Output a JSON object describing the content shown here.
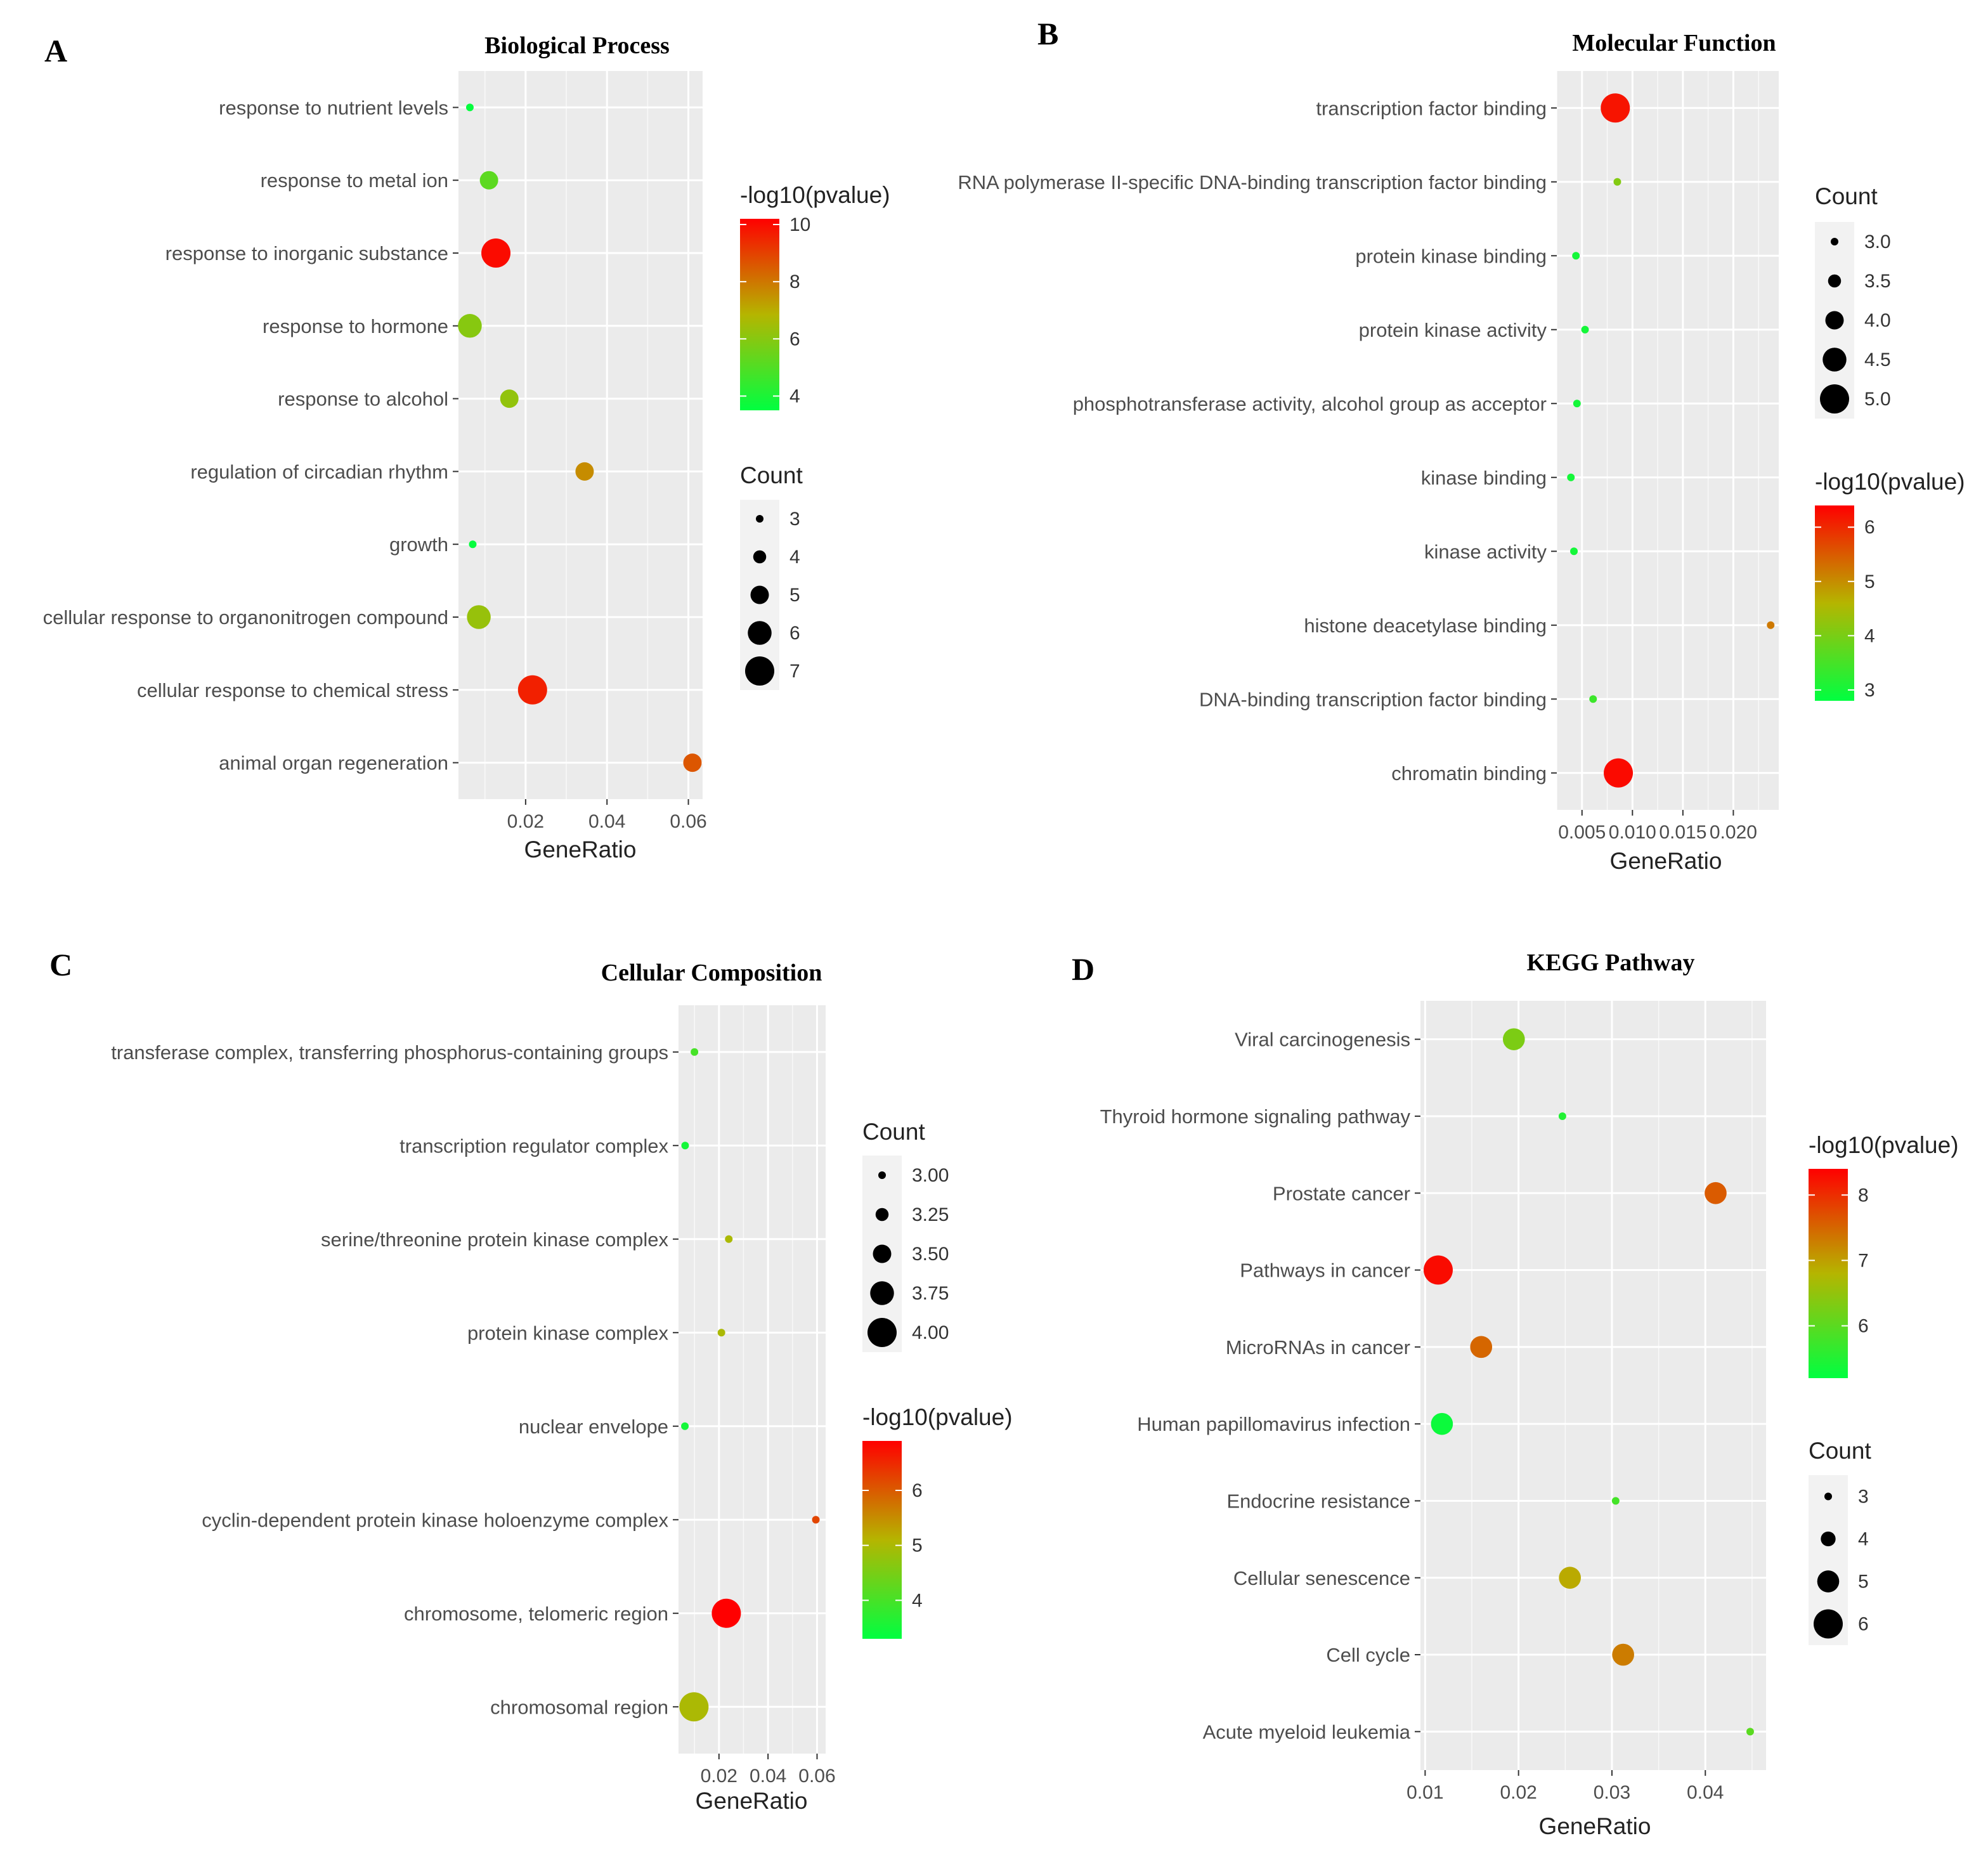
{
  "chart_data": [
    {
      "panel": "A",
      "type": "scatter",
      "title": "Biological Process",
      "xlabel": "GeneRatio",
      "x_ticks": [
        0.02,
        0.04,
        0.06
      ],
      "x_tick_labels": [
        "0.02",
        "0.04",
        "0.06"
      ],
      "xlim": [
        0.0035,
        0.0635
      ],
      "categories": [
        "response to nutrient levels",
        "response to metal ion",
        "response to inorganic substance",
        "response to hormone",
        "response to alcohol",
        "regulation of circadian rhythm",
        "growth",
        "cellular response to organonitrogen compound",
        "cellular response to chemical stress",
        "animal organ regeneration"
      ],
      "points": [
        {
          "category": "response to nutrient levels",
          "x": 0.0063,
          "count": 3,
          "log10p": 3.6
        },
        {
          "category": "response to metal ion",
          "x": 0.011,
          "count": 5,
          "log10p": 5.2
        },
        {
          "category": "response to inorganic substance",
          "x": 0.0127,
          "count": 7,
          "log10p": 10.0
        },
        {
          "category": "response to hormone",
          "x": 0.0063,
          "count": 6,
          "log10p": 6.0
        },
        {
          "category": "response to alcohol",
          "x": 0.016,
          "count": 5,
          "log10p": 6.2
        },
        {
          "category": "regulation of circadian rhythm",
          "x": 0.0345,
          "count": 5,
          "log10p": 7.6
        },
        {
          "category": "growth",
          "x": 0.007,
          "count": 3,
          "log10p": 3.6
        },
        {
          "category": "cellular response to organonitrogen compound",
          "x": 0.0085,
          "count": 6,
          "log10p": 6.3
        },
        {
          "category": "cellular response to chemical stress",
          "x": 0.0217,
          "count": 7,
          "log10p": 9.6
        },
        {
          "category": "animal organ regeneration",
          "x": 0.061,
          "count": 5,
          "log10p": 8.6
        }
      ],
      "color_legend": {
        "title": "-log10(pvalue)",
        "min": 3.5,
        "max": 10.2,
        "ticks": [
          4,
          6,
          8,
          10
        ],
        "tick_labels": [
          "4",
          "6",
          "8",
          "10"
        ]
      },
      "size_legend": {
        "title": "Count",
        "values": [
          3,
          4,
          5,
          6,
          7
        ],
        "labels": [
          "3",
          "4",
          "5",
          "6",
          "7"
        ]
      },
      "size_range": [
        3,
        7
      ]
    },
    {
      "panel": "B",
      "type": "scatter",
      "title": "Molecular Function",
      "xlabel": "GeneRatio",
      "x_ticks": [
        0.005,
        0.01,
        0.015,
        0.02
      ],
      "x_tick_labels": [
        "0.005",
        "0.010",
        "0.015",
        "0.020"
      ],
      "xlim": [
        0.0025,
        0.0245
      ],
      "categories": [
        "transcription factor binding",
        "RNA polymerase II-specific DNA-binding transcription factor binding",
        "protein kinase binding",
        "protein kinase activity",
        "phosphotransferase activity, alcohol group as acceptor",
        "kinase binding",
        "kinase activity",
        "histone deacetylase binding",
        "DNA-binding transcription factor binding",
        "chromatin binding"
      ],
      "points": [
        {
          "category": "transcription factor binding",
          "x": 0.0083,
          "count": 5,
          "log10p": 6.2
        },
        {
          "category": "RNA polymerase II-specific DNA-binding transcription factor binding",
          "x": 0.0085,
          "count": 3,
          "log10p": 4.1
        },
        {
          "category": "protein kinase binding",
          "x": 0.0044,
          "count": 3,
          "log10p": 3.0
        },
        {
          "category": "protein kinase activity",
          "x": 0.0053,
          "count": 3,
          "log10p": 3.0
        },
        {
          "category": "phosphotransferase activity, alcohol group as acceptor",
          "x": 0.0045,
          "count": 3,
          "log10p": 3.0
        },
        {
          "category": "kinase binding",
          "x": 0.0039,
          "count": 3,
          "log10p": 3.0
        },
        {
          "category": "kinase activity",
          "x": 0.0042,
          "count": 3,
          "log10p": 3.0
        },
        {
          "category": "histone deacetylase binding",
          "x": 0.0237,
          "count": 3,
          "log10p": 5.2
        },
        {
          "category": "DNA-binding transcription factor binding",
          "x": 0.0061,
          "count": 3,
          "log10p": 3.4
        },
        {
          "category": "chromatin binding",
          "x": 0.0086,
          "count": 5,
          "log10p": 6.3
        }
      ],
      "color_legend": {
        "title": "-log10(pvalue)",
        "min": 2.8,
        "max": 6.4,
        "ticks": [
          3,
          4,
          5,
          6
        ],
        "tick_labels": [
          "3",
          "4",
          "5",
          "6"
        ]
      },
      "size_legend": {
        "title": "Count",
        "values": [
          3.0,
          3.5,
          4.0,
          4.5,
          5.0
        ],
        "labels": [
          "3.0",
          "3.5",
          "4.0",
          "4.5",
          "5.0"
        ]
      },
      "size_range": [
        3,
        5
      ]
    },
    {
      "panel": "C",
      "type": "scatter",
      "title": "Cellular Composition",
      "xlabel": "GeneRatio",
      "x_ticks": [
        0.02,
        0.04,
        0.06
      ],
      "x_tick_labels": [
        "0.02",
        "0.04",
        "0.06"
      ],
      "xlim": [
        0.0035,
        0.0635
      ],
      "categories": [
        "transferase complex, transferring phosphorus-containing groups",
        "transcription regulator complex",
        "serine/threonine protein kinase complex",
        "protein kinase complex",
        "nuclear envelope",
        "cyclin-dependent protein kinase holoenzyme complex",
        "chromosome, telomeric region",
        "chromosomal region"
      ],
      "points": [
        {
          "category": "transferase complex, transferring phosphorus-containing groups",
          "x": 0.01,
          "count": 3,
          "log10p": 4.0
        },
        {
          "category": "transcription regulator complex",
          "x": 0.0062,
          "count": 3,
          "log10p": 3.5
        },
        {
          "category": "serine/threonine protein kinase complex",
          "x": 0.024,
          "count": 3,
          "log10p": 5.0
        },
        {
          "category": "protein kinase complex",
          "x": 0.021,
          "count": 3,
          "log10p": 5.0
        },
        {
          "category": "nuclear envelope",
          "x": 0.0061,
          "count": 3,
          "log10p": 3.5
        },
        {
          "category": "cyclin-dependent protein kinase holoenzyme complex",
          "x": 0.0595,
          "count": 3,
          "log10p": 6.2
        },
        {
          "category": "chromosome, telomeric region",
          "x": 0.023,
          "count": 4,
          "log10p": 6.9
        },
        {
          "category": "chromosomal region",
          "x": 0.0098,
          "count": 4,
          "log10p": 5.0
        }
      ],
      "color_legend": {
        "title": "-log10(pvalue)",
        "min": 3.3,
        "max": 6.9,
        "ticks": [
          4,
          5,
          6
        ],
        "tick_labels": [
          "4",
          "5",
          "6"
        ]
      },
      "size_legend": {
        "title": "Count",
        "values": [
          3.0,
          3.25,
          3.5,
          3.75,
          4.0
        ],
        "labels": [
          "3.00",
          "3.25",
          "3.50",
          "3.75",
          "4.00"
        ]
      },
      "size_range": [
        3,
        4
      ]
    },
    {
      "panel": "D",
      "type": "scatter",
      "title": "KEGG Pathway",
      "xlabel": "GeneRatio",
      "x_ticks": [
        0.01,
        0.02,
        0.03,
        0.04
      ],
      "x_tick_labels": [
        "0.01",
        "0.02",
        "0.03",
        "0.04"
      ],
      "xlim": [
        0.0095,
        0.0465
      ],
      "categories": [
        "Viral carcinogenesis",
        "Thyroid hormone signaling pathway",
        "Prostate cancer",
        "Pathways in cancer",
        "MicroRNAs in cancer",
        "Human papillomavirus infection",
        "Endocrine resistance",
        "Cellular senescence",
        "Cell cycle",
        "Acute myeloid leukemia"
      ],
      "points": [
        {
          "category": "Viral carcinogenesis",
          "x": 0.0195,
          "count": 5,
          "log10p": 6.3
        },
        {
          "category": "Thyroid hormone signaling pathway",
          "x": 0.0247,
          "count": 3,
          "log10p": 5.5
        },
        {
          "category": "Prostate cancer",
          "x": 0.0411,
          "count": 5,
          "log10p": 7.6
        },
        {
          "category": "Pathways in cancer",
          "x": 0.0114,
          "count": 6,
          "log10p": 8.3
        },
        {
          "category": "MicroRNAs in cancer",
          "x": 0.016,
          "count": 5,
          "log10p": 7.5
        },
        {
          "category": "Human papillomavirus infection",
          "x": 0.0118,
          "count": 5,
          "log10p": 5.3
        },
        {
          "category": "Endocrine resistance",
          "x": 0.0304,
          "count": 3,
          "log10p": 5.8
        },
        {
          "category": "Cellular senescence",
          "x": 0.0255,
          "count": 5,
          "log10p": 6.9
        },
        {
          "category": "Cell cycle",
          "x": 0.0312,
          "count": 5,
          "log10p": 7.3
        },
        {
          "category": "Acute myeloid leukemia",
          "x": 0.0448,
          "count": 3,
          "log10p": 6.0
        }
      ],
      "color_legend": {
        "title": "-log10(pvalue)",
        "min": 5.2,
        "max": 8.4,
        "ticks": [
          6,
          7,
          8
        ],
        "tick_labels": [
          "6",
          "7",
          "8"
        ]
      },
      "size_legend": {
        "title": "Count",
        "values": [
          3,
          4,
          5,
          6
        ],
        "labels": [
          "3",
          "4",
          "5",
          "6"
        ]
      },
      "size_range": [
        3,
        6
      ]
    }
  ],
  "colors": {
    "low": "#00ff40",
    "mid": "#b5b500",
    "high": "#ff0000",
    "panel_bg": "#ebebeb",
    "grid": "#ffffff"
  }
}
